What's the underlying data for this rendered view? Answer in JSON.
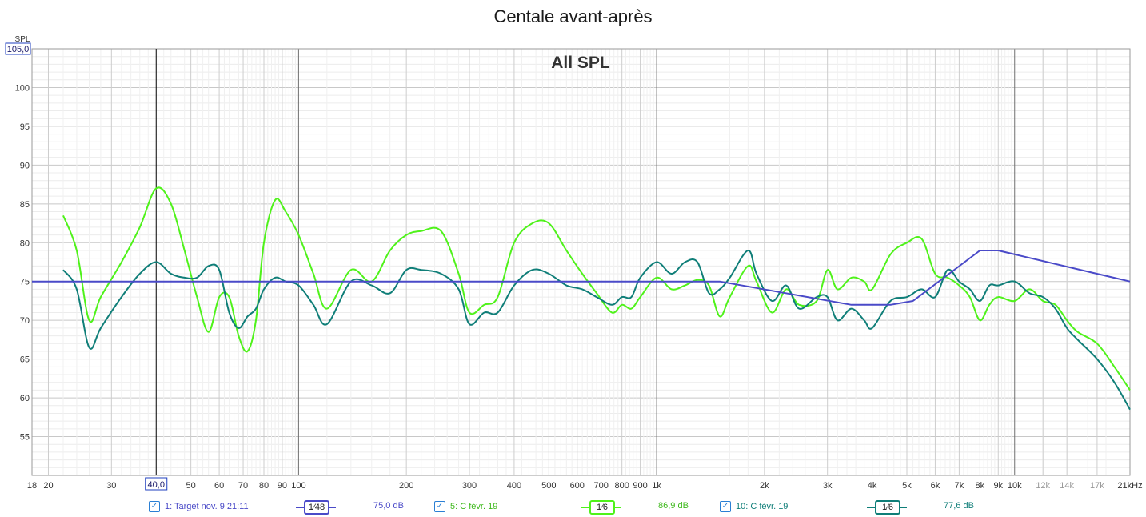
{
  "chart_data": {
    "type": "line",
    "title": "Centale avant-après",
    "subtitle": "All SPL",
    "ylabel": "SPL",
    "xscale": "log",
    "xlim": [
      18,
      21000
    ],
    "ylim": [
      50,
      105
    ],
    "ytop_label": "105,0",
    "cursor_label": "40,0",
    "cursor_x": 40,
    "yticks": [
      {
        "v": 100,
        "label": "100"
      },
      {
        "v": 95,
        "label": "95"
      },
      {
        "v": 90,
        "label": "90"
      },
      {
        "v": 85,
        "label": "85"
      },
      {
        "v": 80,
        "label": "80"
      },
      {
        "v": 75,
        "label": "75"
      },
      {
        "v": 70,
        "label": "70"
      },
      {
        "v": 65,
        "label": "65"
      },
      {
        "v": 60,
        "label": "60"
      },
      {
        "v": 55,
        "label": "55"
      }
    ],
    "xticks": [
      {
        "v": 18,
        "label": "18"
      },
      {
        "v": 20,
        "label": "20"
      },
      {
        "v": 30,
        "label": "30"
      },
      {
        "v": 50,
        "label": "50"
      },
      {
        "v": 60,
        "label": "60"
      },
      {
        "v": 70,
        "label": "70"
      },
      {
        "v": 80,
        "label": "80"
      },
      {
        "v": 90,
        "label": "90"
      },
      {
        "v": 100,
        "label": "100"
      },
      {
        "v": 200,
        "label": "200"
      },
      {
        "v": 300,
        "label": "300"
      },
      {
        "v": 400,
        "label": "400"
      },
      {
        "v": 500,
        "label": "500"
      },
      {
        "v": 600,
        "label": "600"
      },
      {
        "v": 700,
        "label": "700"
      },
      {
        "v": 800,
        "label": "800"
      },
      {
        "v": 900,
        "label": "900"
      },
      {
        "v": 1000,
        "label": "1k"
      },
      {
        "v": 2000,
        "label": "2k"
      },
      {
        "v": 3000,
        "label": "3k"
      },
      {
        "v": 4000,
        "label": "4k"
      },
      {
        "v": 5000,
        "label": "5k"
      },
      {
        "v": 6000,
        "label": "6k"
      },
      {
        "v": 7000,
        "label": "7k"
      },
      {
        "v": 8000,
        "label": "8k"
      },
      {
        "v": 9000,
        "label": "9k"
      },
      {
        "v": 10000,
        "label": "10k"
      },
      {
        "v": 12000,
        "label": "12k"
      },
      {
        "v": 14000,
        "label": "14k"
      },
      {
        "v": 17000,
        "label": "17k"
      },
      {
        "v": 21000,
        "label": "21kHz"
      }
    ],
    "series": [
      {
        "name": "1: Target nov. 9 21:11",
        "color": "#4a4ac8",
        "points": [
          [
            18,
            75
          ],
          [
            1500,
            75
          ],
          [
            3500,
            72
          ],
          [
            4500,
            72
          ],
          [
            5200,
            72.5
          ],
          [
            8000,
            79
          ],
          [
            9000,
            79
          ],
          [
            21000,
            75
          ]
        ]
      },
      {
        "name": "5: C févr. 19",
        "color": "#4ff21a",
        "points": [
          [
            22,
            83.5
          ],
          [
            24,
            79
          ],
          [
            26,
            70
          ],
          [
            28,
            73
          ],
          [
            32,
            77.5
          ],
          [
            36,
            82
          ],
          [
            40,
            87
          ],
          [
            44,
            85
          ],
          [
            48,
            79
          ],
          [
            52,
            73
          ],
          [
            56,
            68.5
          ],
          [
            60,
            73
          ],
          [
            64,
            73
          ],
          [
            68,
            68
          ],
          [
            72,
            66
          ],
          [
            76,
            70
          ],
          [
            80,
            80
          ],
          [
            86,
            85.5
          ],
          [
            92,
            84
          ],
          [
            100,
            81
          ],
          [
            110,
            76
          ],
          [
            120,
            71.5
          ],
          [
            140,
            76.5
          ],
          [
            160,
            75
          ],
          [
            180,
            79
          ],
          [
            200,
            81
          ],
          [
            220,
            81.5
          ],
          [
            250,
            81.5
          ],
          [
            280,
            76
          ],
          [
            300,
            71
          ],
          [
            330,
            72
          ],
          [
            360,
            73
          ],
          [
            400,
            80
          ],
          [
            450,
            82.5
          ],
          [
            500,
            82.5
          ],
          [
            560,
            79
          ],
          [
            620,
            76
          ],
          [
            680,
            73.5
          ],
          [
            750,
            71
          ],
          [
            800,
            72
          ],
          [
            850,
            71.5
          ],
          [
            900,
            73
          ],
          [
            1000,
            75.5
          ],
          [
            1100,
            74
          ],
          [
            1200,
            74.5
          ],
          [
            1300,
            75.2
          ],
          [
            1400,
            74.5
          ],
          [
            1500,
            70.5
          ],
          [
            1600,
            73
          ],
          [
            1800,
            77
          ],
          [
            1900,
            75
          ],
          [
            2100,
            71
          ],
          [
            2300,
            74
          ],
          [
            2500,
            72
          ],
          [
            2800,
            72.5
          ],
          [
            3000,
            76.5
          ],
          [
            3200,
            74
          ],
          [
            3500,
            75.5
          ],
          [
            3800,
            75
          ],
          [
            4000,
            74
          ],
          [
            4500,
            78.5
          ],
          [
            5000,
            80
          ],
          [
            5500,
            80.5
          ],
          [
            6000,
            76
          ],
          [
            6500,
            75.5
          ],
          [
            7000,
            74.5
          ],
          [
            7500,
            73
          ],
          [
            8000,
            70
          ],
          [
            8500,
            72
          ],
          [
            9000,
            73
          ],
          [
            10000,
            72.5
          ],
          [
            11000,
            74
          ],
          [
            12000,
            72.5
          ],
          [
            13000,
            72
          ],
          [
            14000,
            70
          ],
          [
            15000,
            68.5
          ],
          [
            17000,
            67
          ],
          [
            19000,
            64
          ],
          [
            21000,
            61
          ]
        ]
      },
      {
        "name": "10: C févr. 19",
        "color": "#0f7e78",
        "points": [
          [
            22,
            76.5
          ],
          [
            24,
            74
          ],
          [
            26,
            66.5
          ],
          [
            28,
            69
          ],
          [
            32,
            73
          ],
          [
            36,
            76
          ],
          [
            40,
            77.5
          ],
          [
            44,
            76
          ],
          [
            48,
            75.5
          ],
          [
            52,
            75.5
          ],
          [
            56,
            77
          ],
          [
            60,
            76.5
          ],
          [
            64,
            71
          ],
          [
            68,
            69
          ],
          [
            72,
            70.5
          ],
          [
            76,
            71.5
          ],
          [
            80,
            74
          ],
          [
            86,
            75.5
          ],
          [
            92,
            75
          ],
          [
            100,
            74.5
          ],
          [
            110,
            72
          ],
          [
            120,
            69.5
          ],
          [
            140,
            75
          ],
          [
            160,
            74.5
          ],
          [
            180,
            73.5
          ],
          [
            200,
            76.5
          ],
          [
            220,
            76.5
          ],
          [
            250,
            76
          ],
          [
            280,
            74
          ],
          [
            300,
            69.5
          ],
          [
            330,
            71
          ],
          [
            360,
            71
          ],
          [
            400,
            74.5
          ],
          [
            450,
            76.5
          ],
          [
            500,
            76
          ],
          [
            560,
            74.5
          ],
          [
            620,
            74
          ],
          [
            680,
            73
          ],
          [
            750,
            72
          ],
          [
            800,
            73
          ],
          [
            850,
            73
          ],
          [
            900,
            75.5
          ],
          [
            1000,
            77.5
          ],
          [
            1100,
            76
          ],
          [
            1200,
            77.5
          ],
          [
            1300,
            77.5
          ],
          [
            1400,
            73.5
          ],
          [
            1500,
            74
          ],
          [
            1600,
            75.5
          ],
          [
            1800,
            79
          ],
          [
            1900,
            76
          ],
          [
            2100,
            72.5
          ],
          [
            2300,
            74.5
          ],
          [
            2500,
            71.5
          ],
          [
            2800,
            73
          ],
          [
            3000,
            73
          ],
          [
            3200,
            70
          ],
          [
            3500,
            71.5
          ],
          [
            3800,
            70
          ],
          [
            4000,
            69
          ],
          [
            4500,
            72.5
          ],
          [
            5000,
            73
          ],
          [
            5500,
            74
          ],
          [
            6000,
            73
          ],
          [
            6500,
            76.5
          ],
          [
            7000,
            75
          ],
          [
            7500,
            74
          ],
          [
            8000,
            72.5
          ],
          [
            8500,
            74.5
          ],
          [
            9000,
            74.5
          ],
          [
            10000,
            75
          ],
          [
            11000,
            73.5
          ],
          [
            12000,
            73
          ],
          [
            13000,
            71.5
          ],
          [
            14000,
            69
          ],
          [
            15000,
            67.5
          ],
          [
            17000,
            65
          ],
          [
            19000,
            62
          ],
          [
            21000,
            58.5
          ]
        ]
      }
    ]
  },
  "legend": [
    {
      "check": "✓",
      "name": "1: Target nov. 9 21:11",
      "smoothing": "1⁄48",
      "value": "75,0 dB",
      "color": "#4a4ac8"
    },
    {
      "check": "✓",
      "name": "5: C févr. 19",
      "smoothing": "1⁄6",
      "value": "86,9 dB",
      "color": "#4ff21a"
    },
    {
      "check": "✓",
      "name": "10: C févr. 19",
      "smoothing": "1⁄6",
      "value": "77,6 dB",
      "color": "#0f7e78"
    }
  ]
}
